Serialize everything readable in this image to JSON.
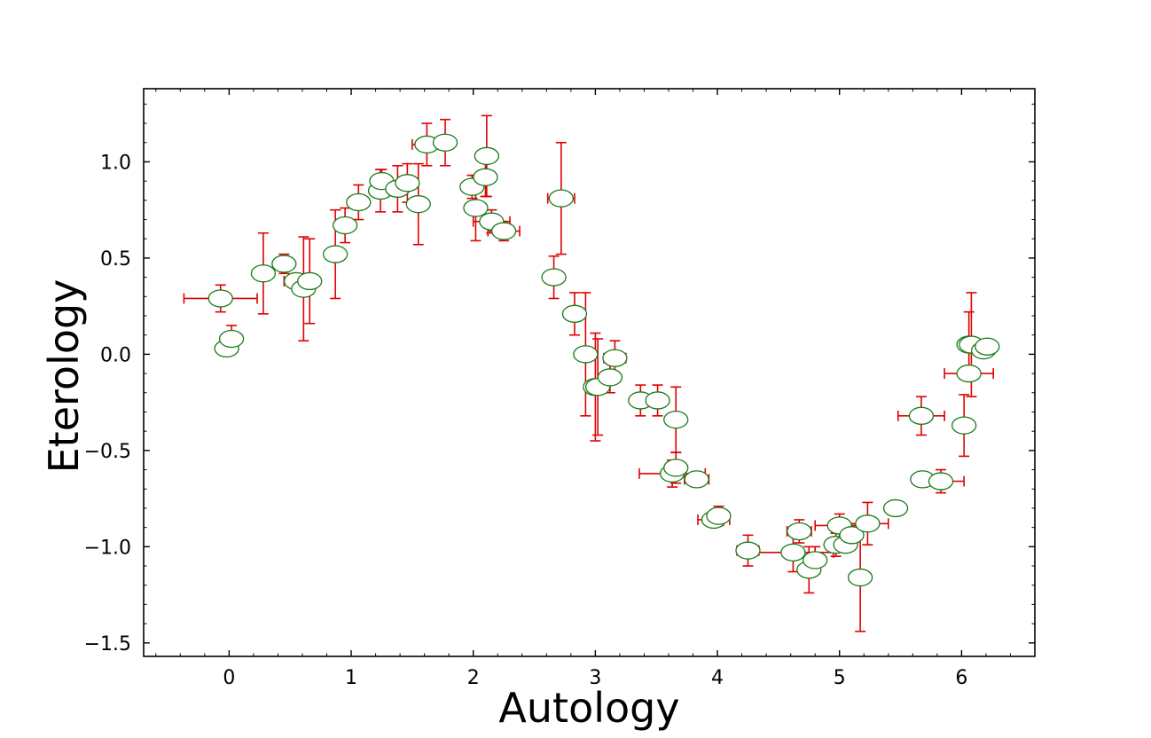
{
  "chart_data": {
    "type": "scatter",
    "title": "",
    "xlabel": "Autology",
    "ylabel": "Eterology",
    "xlim": [
      -0.7,
      6.6
    ],
    "ylim": [
      -1.57,
      1.38
    ],
    "x_ticks": [
      0,
      1,
      2,
      3,
      4,
      5,
      6
    ],
    "x_tick_labels": [
      "0",
      "1",
      "2",
      "3",
      "4",
      "5",
      "6"
    ],
    "y_ticks": [
      -1.5,
      -1.0,
      -0.5,
      0.0,
      0.5,
      1.0
    ],
    "y_tick_labels": [
      "−1.5",
      "−1.0",
      "−0.5",
      "0.0",
      "0.5",
      "1.0"
    ],
    "grid": false,
    "legend": "none",
    "colors": {
      "marker_edge": "#1a7a1a",
      "marker_face": "#ffffff",
      "errorbar": "#e00000"
    },
    "points": [
      {
        "x": -0.07,
        "y": 0.29,
        "xerr": 0.3,
        "yerr": 0.07
      },
      {
        "x": -0.02,
        "y": 0.03,
        "xerr": 0.03,
        "yerr": 0.03
      },
      {
        "x": 0.02,
        "y": 0.08,
        "xerr": 0.02,
        "yerr": 0.07
      },
      {
        "x": 0.28,
        "y": 0.42,
        "xerr": 0.02,
        "yerr": 0.21
      },
      {
        "x": 0.45,
        "y": 0.47,
        "xerr": 0.05,
        "yerr": 0.05
      },
      {
        "x": 0.55,
        "y": 0.38,
        "xerr": 0.1,
        "yerr": 0.03
      },
      {
        "x": 0.61,
        "y": 0.34,
        "xerr": 0.02,
        "yerr": 0.27
      },
      {
        "x": 0.66,
        "y": 0.38,
        "xerr": 0.02,
        "yerr": 0.22
      },
      {
        "x": 0.87,
        "y": 0.52,
        "xerr": 0.02,
        "yerr": 0.23
      },
      {
        "x": 0.95,
        "y": 0.67,
        "xerr": 0.06,
        "yerr": 0.09
      },
      {
        "x": 1.06,
        "y": 0.79,
        "xerr": 0.05,
        "yerr": 0.09
      },
      {
        "x": 1.24,
        "y": 0.85,
        "xerr": 0.02,
        "yerr": 0.11
      },
      {
        "x": 1.25,
        "y": 0.9,
        "xerr": 0.02,
        "yerr": 0.06
      },
      {
        "x": 1.38,
        "y": 0.86,
        "xerr": 0.02,
        "yerr": 0.12
      },
      {
        "x": 1.46,
        "y": 0.89,
        "xerr": 0.08,
        "yerr": 0.1
      },
      {
        "x": 1.55,
        "y": 0.78,
        "xerr": 0.02,
        "yerr": 0.21
      },
      {
        "x": 1.62,
        "y": 1.09,
        "xerr": 0.12,
        "yerr": 0.11
      },
      {
        "x": 1.77,
        "y": 1.1,
        "xerr": 0.02,
        "yerr": 0.12
      },
      {
        "x": 1.99,
        "y": 0.87,
        "xerr": 0.03,
        "yerr": 0.06
      },
      {
        "x": 2.02,
        "y": 0.76,
        "xerr": 0.02,
        "yerr": 0.17
      },
      {
        "x": 2.1,
        "y": 0.92,
        "xerr": 0.02,
        "yerr": 0.1
      },
      {
        "x": 2.11,
        "y": 1.03,
        "xerr": 0.03,
        "yerr": 0.21
      },
      {
        "x": 2.15,
        "y": 0.69,
        "xerr": 0.15,
        "yerr": 0.06
      },
      {
        "x": 2.25,
        "y": 0.64,
        "xerr": 0.13,
        "yerr": 0.05
      },
      {
        "x": 2.66,
        "y": 0.4,
        "xerr": 0.03,
        "yerr": 0.11
      },
      {
        "x": 2.72,
        "y": 0.81,
        "xerr": 0.11,
        "yerr": 0.29
      },
      {
        "x": 2.83,
        "y": 0.21,
        "xerr": 0.02,
        "yerr": 0.11
      },
      {
        "x": 2.92,
        "y": 0.0,
        "xerr": 0.06,
        "yerr": 0.32
      },
      {
        "x": 3.0,
        "y": -0.17,
        "xerr": 0.02,
        "yerr": 0.28
      },
      {
        "x": 3.02,
        "y": -0.17,
        "xerr": 0.02,
        "yerr": 0.25
      },
      {
        "x": 3.12,
        "y": -0.12,
        "xerr": 0.02,
        "yerr": 0.08
      },
      {
        "x": 3.16,
        "y": -0.02,
        "xerr": 0.09,
        "yerr": 0.09
      },
      {
        "x": 3.37,
        "y": -0.24,
        "xerr": 0.02,
        "yerr": 0.08
      },
      {
        "x": 3.51,
        "y": -0.24,
        "xerr": 0.04,
        "yerr": 0.08
      },
      {
        "x": 3.63,
        "y": -0.62,
        "xerr": 0.27,
        "yerr": 0.07
      },
      {
        "x": 3.66,
        "y": -0.59,
        "xerr": 0.02,
        "yerr": 0.08
      },
      {
        "x": 3.66,
        "y": -0.34,
        "xerr": 0.02,
        "yerr": 0.17
      },
      {
        "x": 3.83,
        "y": -0.65,
        "xerr": 0.1,
        "yerr": 0.04
      },
      {
        "x": 3.97,
        "y": -0.86,
        "xerr": 0.13,
        "yerr": 0.03
      },
      {
        "x": 4.01,
        "y": -0.84,
        "xerr": 0.02,
        "yerr": 0.05
      },
      {
        "x": 4.25,
        "y": -1.02,
        "xerr": 0.09,
        "yerr": 0.08
      },
      {
        "x": 4.62,
        "y": -1.03,
        "xerr": 0.33,
        "yerr": 0.1
      },
      {
        "x": 4.67,
        "y": -0.92,
        "xerr": 0.1,
        "yerr": 0.06
      },
      {
        "x": 4.75,
        "y": -1.12,
        "xerr": 0.02,
        "yerr": 0.12
      },
      {
        "x": 4.8,
        "y": -1.07,
        "xerr": 0.08,
        "yerr": 0.07
      },
      {
        "x": 4.97,
        "y": -0.99,
        "xerr": 0.02,
        "yerr": 0.06
      },
      {
        "x": 5.0,
        "y": -0.89,
        "xerr": 0.2,
        "yerr": 0.06
      },
      {
        "x": 5.05,
        "y": -0.99,
        "xerr": 0.04,
        "yerr": 0.04
      },
      {
        "x": 5.1,
        "y": -0.94,
        "xerr": 0.02,
        "yerr": 0.05
      },
      {
        "x": 5.17,
        "y": -1.16,
        "xerr": 0.02,
        "yerr": 0.28
      },
      {
        "x": 5.23,
        "y": -0.88,
        "xerr": 0.17,
        "yerr": 0.11
      },
      {
        "x": 5.46,
        "y": -0.8,
        "xerr": 0.02,
        "yerr": 0.03
      },
      {
        "x": 5.67,
        "y": -0.32,
        "xerr": 0.19,
        "yerr": 0.1
      },
      {
        "x": 5.68,
        "y": -0.65,
        "xerr": 0.05,
        "yerr": 0.04
      },
      {
        "x": 5.83,
        "y": -0.66,
        "xerr": 0.19,
        "yerr": 0.06
      },
      {
        "x": 6.02,
        "y": -0.37,
        "xerr": 0.02,
        "yerr": 0.16
      },
      {
        "x": 6.06,
        "y": 0.05,
        "xerr": 0.02,
        "yerr": 0.17
      },
      {
        "x": 6.06,
        "y": -0.1,
        "xerr": 0.2,
        "yerr": 0.03
      },
      {
        "x": 6.08,
        "y": 0.05,
        "xerr": 0.03,
        "yerr": 0.27
      },
      {
        "x": 6.18,
        "y": 0.02,
        "xerr": 0.04,
        "yerr": 0.03
      },
      {
        "x": 6.21,
        "y": 0.04,
        "xerr": 0.02,
        "yerr": 0.02
      }
    ]
  }
}
